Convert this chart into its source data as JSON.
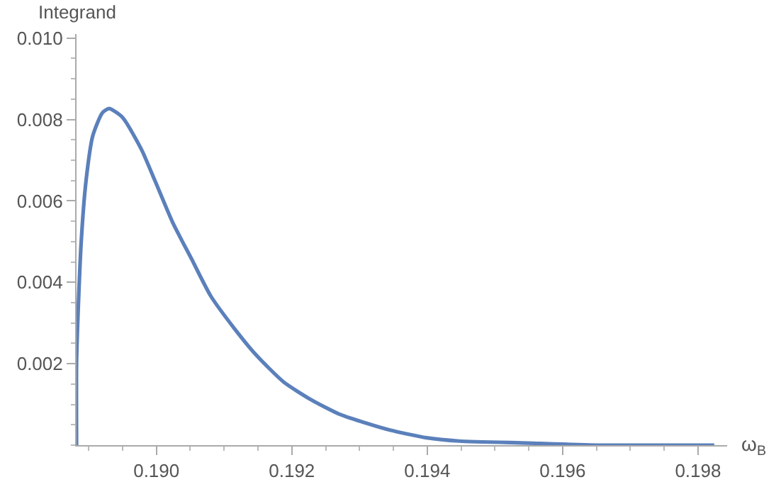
{
  "chart_data": {
    "type": "line",
    "xlabel": "ω$_{B}$",
    "ylabel": "Integrand",
    "x": [
      0.18882,
      0.18882,
      0.18884,
      0.18889,
      0.18896,
      0.18906,
      0.1892,
      0.1893,
      0.1895,
      0.18978,
      0.18998,
      0.19024,
      0.19052,
      0.1908,
      0.19114,
      0.19147,
      0.19188,
      0.19229,
      0.19269,
      0.1931,
      0.19345,
      0.19399,
      0.19447,
      0.19549,
      0.19651,
      0.19824
    ],
    "series": [
      {
        "color": "#5b80bb",
        "values": [
          0,
          0.002,
          0.00313,
          0.00502,
          0.00649,
          0.0076,
          0.00816,
          0.00827,
          0.00805,
          0.00726,
          0.00649,
          0.00547,
          0.00457,
          0.00367,
          0.00289,
          0.00222,
          0.00155,
          0.00111,
          0.00077,
          0.00054,
          0.00037,
          0.00018,
          0.0001,
          5e-05,
          0,
          0
        ]
      }
    ],
    "xlim": [
      0.18882,
      0.19843
    ],
    "ylim": [
      0,
      0.0101
    ],
    "xticks": [
      {
        "value": 0.19,
        "label": "0.190"
      },
      0.192,
      0.194,
      0.196,
      0.198
    ],
    "yticks": [
      0.002,
      0.004,
      0.006,
      0.008,
      {
        "value": 0.01,
        "label": "0.010"
      }
    ],
    "marker": "none",
    "line_style": "solid"
  }
}
